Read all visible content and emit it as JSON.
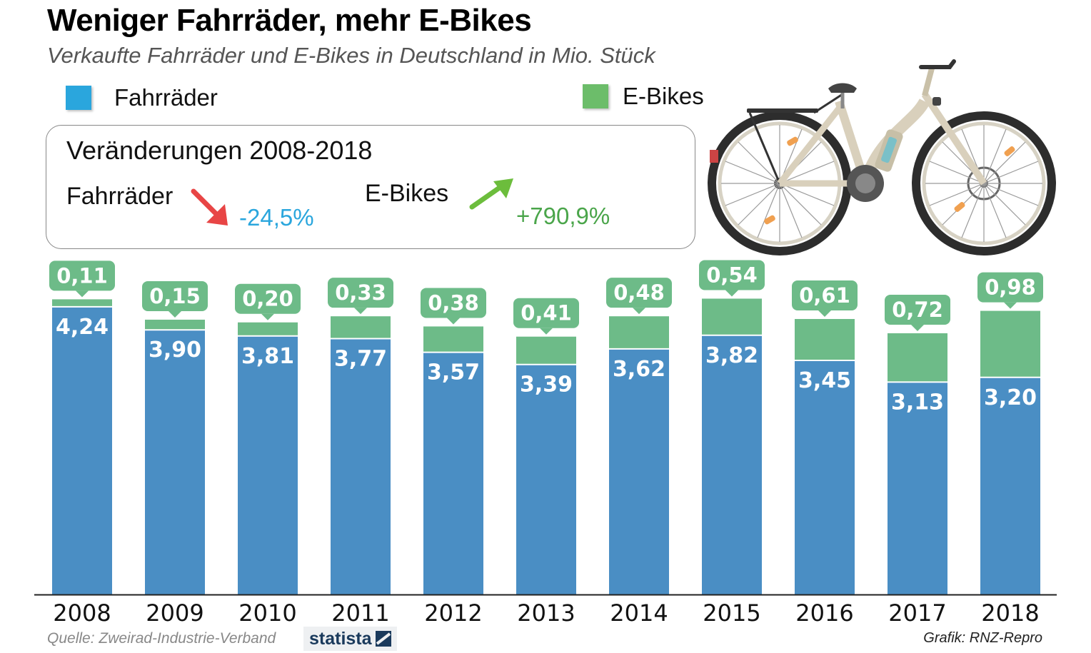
{
  "title": "Weniger Fahrräder, mehr E-Bikes",
  "subtitle": "Verkaufte Fahrräder und E-Bikes in Deutschland in Mio. Stück",
  "legend": [
    {
      "label": "Fahrräder",
      "color": "#2aa6dd"
    },
    {
      "label": "E-Bikes",
      "color": "#6cbd6a"
    }
  ],
  "changes": {
    "title": "Veränderungen 2008-2018",
    "fahrraeder": {
      "label": "Fahrräder",
      "value": "-24,5%",
      "color": "#2aa6dd",
      "arrow_color": "#e84545"
    },
    "ebikes": {
      "label": "E-Bikes",
      "value": "+790,9%",
      "color": "#4aa54a",
      "arrow_color": "#6cbd3c"
    }
  },
  "chart_data": {
    "type": "bar",
    "stacked": true,
    "categories": [
      "2008",
      "2009",
      "2010",
      "2011",
      "2012",
      "2013",
      "2014",
      "2015",
      "2016",
      "2017",
      "2018"
    ],
    "series": [
      {
        "name": "Fahrräder",
        "color": "#4a8ec4",
        "values": [
          4.24,
          3.9,
          3.81,
          3.77,
          3.57,
          3.39,
          3.62,
          3.82,
          3.45,
          3.13,
          3.2
        ],
        "labels": [
          "4,24",
          "3,90",
          "3,81",
          "3,77",
          "3,57",
          "3,39",
          "3,62",
          "3,82",
          "3,45",
          "3,13",
          "3,20"
        ]
      },
      {
        "name": "E-Bikes",
        "color": "#6dbb88",
        "values": [
          0.11,
          0.15,
          0.2,
          0.33,
          0.38,
          0.41,
          0.48,
          0.54,
          0.61,
          0.72,
          0.98
        ],
        "labels": [
          "0,11",
          "0,15",
          "0,20",
          "0,33",
          "0,38",
          "0,41",
          "0,48",
          "0,54",
          "0,61",
          "0,72",
          "0,98"
        ]
      }
    ],
    "ylim": [
      0,
      4.35
    ],
    "grid": false,
    "legend_position": "top"
  },
  "footer": {
    "source": "Quelle: Zweirad-Industrie-Verband",
    "logo": "statista",
    "credit": "Grafik: RNZ-Repro"
  },
  "icons": [
    "arrow-down-right-icon",
    "arrow-up-right-icon",
    "e-bike-illustration",
    "statista-logo-icon"
  ]
}
